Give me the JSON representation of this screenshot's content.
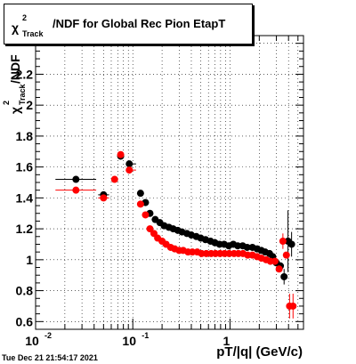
{
  "chart_data": {
    "type": "scatter",
    "title_parts": {
      "chi": "χ",
      "sup": "2",
      "sub": "Track",
      "rest": "/NDF for Global Rec Pion EtapT"
    },
    "xlabel": "pT/|q| (GeV/c)",
    "ylabel_parts": {
      "chi": "χ",
      "sup": "2",
      "sub": "Track",
      "rest": "/NDF"
    },
    "xscale": "log",
    "xlim": [
      0.01,
      5.7
    ],
    "ylim": [
      0.55,
      2.45
    ],
    "yticks": [
      0.6,
      0.8,
      1,
      1.2,
      1.4,
      1.6,
      1.8,
      2,
      2.2
    ],
    "ytick_labels": [
      "0.6",
      "0.8",
      "1",
      "1.2",
      "1.4",
      "1.6",
      "1.8",
      "2",
      "2.2"
    ],
    "xticks": [
      0.01,
      0.1,
      1
    ],
    "xtick_labels": [
      "10",
      "10",
      "1"
    ],
    "xtick_exponents": [
      "-2",
      "-1",
      ""
    ],
    "grid": true,
    "series": [
      {
        "color": "#000000",
        "points": [
          {
            "x": 0.026,
            "y": 1.52,
            "xerr": [
              0.016,
              0.042
            ]
          },
          {
            "x": 0.05,
            "y": 1.42,
            "xerr": [
              0.044,
              0.057
            ]
          },
          {
            "x": 0.075,
            "y": 1.67
          },
          {
            "x": 0.092,
            "y": 1.62,
            "xerr": [
              0.085,
              0.108
            ]
          },
          {
            "x": 0.12,
            "y": 1.43
          },
          {
            "x": 0.135,
            "y": 1.37
          },
          {
            "x": 0.15,
            "y": 1.3
          },
          {
            "x": 0.17,
            "y": 1.26
          },
          {
            "x": 0.19,
            "y": 1.24
          },
          {
            "x": 0.21,
            "y": 1.22
          },
          {
            "x": 0.235,
            "y": 1.21
          },
          {
            "x": 0.26,
            "y": 1.2
          },
          {
            "x": 0.29,
            "y": 1.19
          },
          {
            "x": 0.32,
            "y": 1.18
          },
          {
            "x": 0.36,
            "y": 1.17
          },
          {
            "x": 0.4,
            "y": 1.16
          },
          {
            "x": 0.45,
            "y": 1.15
          },
          {
            "x": 0.5,
            "y": 1.14
          },
          {
            "x": 0.56,
            "y": 1.13
          },
          {
            "x": 0.63,
            "y": 1.12
          },
          {
            "x": 0.7,
            "y": 1.11
          },
          {
            "x": 0.78,
            "y": 1.1
          },
          {
            "x": 0.87,
            "y": 1.1
          },
          {
            "x": 0.97,
            "y": 1.09
          },
          {
            "x": 1.08,
            "y": 1.1
          },
          {
            "x": 1.2,
            "y": 1.09
          },
          {
            "x": 1.35,
            "y": 1.09
          },
          {
            "x": 1.5,
            "y": 1.08
          },
          {
            "x": 1.7,
            "y": 1.08
          },
          {
            "x": 1.9,
            "y": 1.07
          },
          {
            "x": 2.1,
            "y": 1.06
          },
          {
            "x": 2.3,
            "y": 1.05
          },
          {
            "x": 2.55,
            "y": 1.04
          },
          {
            "x": 2.75,
            "y": 1.02
          },
          {
            "x": 3.0,
            "y": 0.98
          },
          {
            "x": 3.3,
            "y": 0.96
          },
          {
            "x": 3.6,
            "y": 0.89,
            "yerr": [
              0.84,
              0.94
            ]
          },
          {
            "x": 3.95,
            "y": 1.12,
            "yerr": [
              0.92,
              1.32
            ]
          },
          {
            "x": 4.3,
            "y": 1.1,
            "yerr": [
              1.02,
              1.18
            ]
          }
        ]
      },
      {
        "color": "#ff0000",
        "points": [
          {
            "x": 0.026,
            "y": 1.45,
            "xerr": [
              0.016,
              0.042
            ]
          },
          {
            "x": 0.05,
            "y": 1.4,
            "xerr": [
              0.044,
              0.057
            ]
          },
          {
            "x": 0.065,
            "y": 1.52
          },
          {
            "x": 0.075,
            "y": 1.68
          },
          {
            "x": 0.092,
            "y": 1.58,
            "xerr": [
              0.085,
              0.108
            ]
          },
          {
            "x": 0.12,
            "y": 1.36
          },
          {
            "x": 0.135,
            "y": 1.29
          },
          {
            "x": 0.15,
            "y": 1.2
          },
          {
            "x": 0.165,
            "y": 1.17
          },
          {
            "x": 0.18,
            "y": 1.14
          },
          {
            "x": 0.2,
            "y": 1.12
          },
          {
            "x": 0.22,
            "y": 1.1
          },
          {
            "x": 0.245,
            "y": 1.08
          },
          {
            "x": 0.27,
            "y": 1.07
          },
          {
            "x": 0.3,
            "y": 1.06
          },
          {
            "x": 0.33,
            "y": 1.06
          },
          {
            "x": 0.37,
            "y": 1.05
          },
          {
            "x": 0.41,
            "y": 1.05
          },
          {
            "x": 0.46,
            "y": 1.05
          },
          {
            "x": 0.51,
            "y": 1.04
          },
          {
            "x": 0.57,
            "y": 1.04
          },
          {
            "x": 0.64,
            "y": 1.04
          },
          {
            "x": 0.71,
            "y": 1.04
          },
          {
            "x": 0.79,
            "y": 1.04
          },
          {
            "x": 0.88,
            "y": 1.04
          },
          {
            "x": 0.98,
            "y": 1.04
          },
          {
            "x": 1.1,
            "y": 1.04
          },
          {
            "x": 1.22,
            "y": 1.04
          },
          {
            "x": 1.36,
            "y": 1.04
          },
          {
            "x": 1.52,
            "y": 1.03
          },
          {
            "x": 1.7,
            "y": 1.03
          },
          {
            "x": 1.9,
            "y": 1.02
          },
          {
            "x": 2.1,
            "y": 1.01
          },
          {
            "x": 2.35,
            "y": 1.0
          },
          {
            "x": 2.6,
            "y": 0.99
          },
          {
            "x": 2.9,
            "y": 0.99
          },
          {
            "x": 3.2,
            "y": 0.94
          },
          {
            "x": 3.5,
            "y": 1.12,
            "yerr": [
              1.07,
              1.17
            ]
          },
          {
            "x": 3.8,
            "y": 1.03
          },
          {
            "x": 4.1,
            "y": 0.7,
            "yerr": [
              0.62,
              0.78
            ]
          },
          {
            "x": 4.45,
            "y": 0.7,
            "yerr": [
              0.62,
              0.78
            ]
          }
        ]
      }
    ]
  },
  "footer": {
    "timestamp": "Tue Dec 21 21:54:17 2021"
  }
}
